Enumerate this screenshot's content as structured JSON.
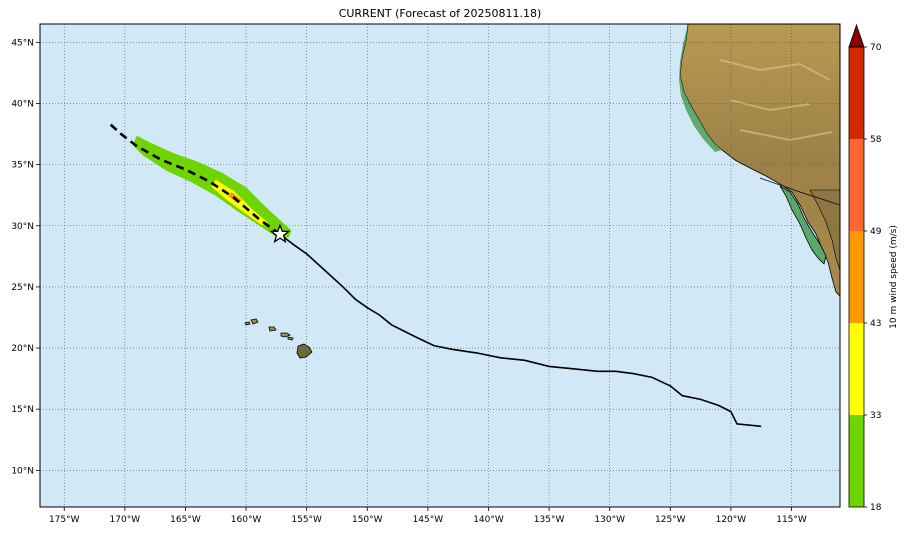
{
  "title": "CURRENT (Forecast of 20250811.18)",
  "map": {
    "lon_range": [
      -177,
      -111
    ],
    "lat_range": [
      7,
      46.5
    ],
    "lon_ticks": [
      -175,
      -170,
      -165,
      -160,
      -155,
      -150,
      -145,
      -140,
      -135,
      -130,
      -125,
      -120,
      -115
    ],
    "lat_ticks": [
      10,
      15,
      20,
      25,
      30,
      35,
      40,
      45
    ],
    "lon_tick_labels": [
      "175°W",
      "170°W",
      "165°W",
      "160°W",
      "155°W",
      "150°W",
      "145°W",
      "140°W",
      "135°W",
      "130°W",
      "125°W",
      "120°W",
      "115°W"
    ],
    "lat_tick_labels": [
      "10°N",
      "15°N",
      "20°N",
      "25°N",
      "30°N",
      "35°N",
      "40°N",
      "45°N"
    ],
    "ocean_color": "#d1e8f7",
    "grid": true
  },
  "track": {
    "past": [
      [
        -117.5,
        13.6
      ],
      [
        -119.5,
        13.8
      ],
      [
        -120,
        14.8
      ],
      [
        -121,
        15.3
      ],
      [
        -122.5,
        15.8
      ],
      [
        -124,
        16.1
      ],
      [
        -125,
        16.9
      ],
      [
        -126.5,
        17.6
      ],
      [
        -128,
        17.9
      ],
      [
        -129.5,
        18.1
      ],
      [
        -131,
        18.1
      ],
      [
        -133,
        18.3
      ],
      [
        -135,
        18.5
      ],
      [
        -137,
        19
      ],
      [
        -139,
        19.2
      ],
      [
        -141,
        19.6
      ],
      [
        -143,
        19.9
      ],
      [
        -144.5,
        20.2
      ],
      [
        -146,
        20.9
      ],
      [
        -147,
        21.4
      ],
      [
        -148,
        21.9
      ],
      [
        -149,
        22.7
      ],
      [
        -150,
        23.3
      ],
      [
        -151,
        24
      ],
      [
        -152,
        25
      ],
      [
        -153,
        25.9
      ],
      [
        -154,
        26.8
      ],
      [
        -155,
        27.7
      ],
      [
        -156,
        28.4
      ],
      [
        -157.2,
        29.3
      ]
    ],
    "forecast": [
      [
        -157.2,
        29.3
      ],
      [
        -159,
        30.6
      ],
      [
        -161,
        32.3
      ],
      [
        -163,
        33.6
      ],
      [
        -165,
        34.6
      ],
      [
        -167,
        35.4
      ],
      [
        -169,
        36.5
      ],
      [
        -170.3,
        37.5
      ],
      [
        -171.2,
        38.3
      ]
    ],
    "current_position": [
      -157.2,
      29.3
    ]
  },
  "wind_swath": {
    "outer": [
      [
        -169,
        37.3
      ],
      [
        -168,
        36.8
      ],
      [
        -166,
        35.9
      ],
      [
        -164,
        35.2
      ],
      [
        -162,
        34.3
      ],
      [
        -160,
        33.1
      ],
      [
        -158.5,
        31.6
      ],
      [
        -156.3,
        29.6
      ],
      [
        -156.5,
        29.1
      ],
      [
        -157.3,
        29
      ],
      [
        -158.5,
        29.8
      ],
      [
        -160.5,
        31.1
      ],
      [
        -162.5,
        32.5
      ],
      [
        -164.5,
        33.6
      ],
      [
        -166.5,
        34.5
      ],
      [
        -168.5,
        35.8
      ],
      [
        -169.3,
        36.6
      ]
    ],
    "middle": [
      [
        -162.5,
        33.7
      ],
      [
        -161,
        32.8
      ],
      [
        -159.5,
        31.3
      ],
      [
        -158.3,
        30.3
      ],
      [
        -158.7,
        30.1
      ],
      [
        -160,
        31
      ],
      [
        -161.5,
        32.1
      ],
      [
        -162.8,
        33.2
      ]
    ],
    "inner": [
      [
        -161.2,
        32.7
      ],
      [
        -160.4,
        32.1
      ],
      [
        -160.7,
        31.9
      ],
      [
        -161.4,
        32.4
      ]
    ]
  },
  "colorbar": {
    "label": "10 m wind speed (m/s)",
    "ticks": [
      18,
      33,
      43,
      49,
      58,
      70
    ],
    "tick_labels": [
      "18",
      "33",
      "43",
      "49",
      "58",
      "70"
    ],
    "colors": [
      "#6fd500",
      "#ffff00",
      "#ff9900",
      "#ff6633",
      "#d42a00"
    ],
    "extend_color": "#8b0000"
  }
}
